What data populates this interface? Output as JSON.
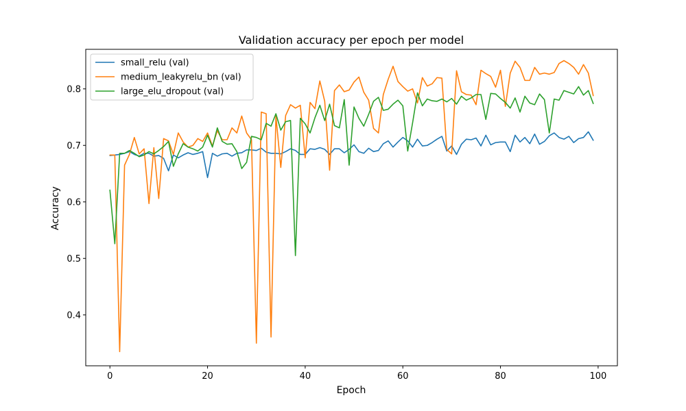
{
  "chart_data": {
    "type": "line",
    "title": "Validation accuracy per epoch per model",
    "xlabel": "Epoch",
    "ylabel": "Accuracy",
    "xlim": [
      -4.95,
      103.95
    ],
    "ylim": [
      0.31,
      0.87
    ],
    "xticks": [
      0,
      20,
      40,
      60,
      80,
      100
    ],
    "yticks": [
      0.4,
      0.5,
      0.6,
      0.7,
      0.8
    ],
    "grid": false,
    "legend_position": "top-left",
    "x": [
      0,
      1,
      2,
      3,
      4,
      5,
      6,
      7,
      8,
      9,
      10,
      11,
      12,
      13,
      14,
      15,
      16,
      17,
      18,
      19,
      20,
      21,
      22,
      23,
      24,
      25,
      26,
      27,
      28,
      29,
      30,
      31,
      32,
      33,
      34,
      35,
      36,
      37,
      38,
      39,
      40,
      41,
      42,
      43,
      44,
      45,
      46,
      47,
      48,
      49,
      50,
      51,
      52,
      53,
      54,
      55,
      56,
      57,
      58,
      59,
      60,
      61,
      62,
      63,
      64,
      65,
      66,
      67,
      68,
      69,
      70,
      71,
      72,
      73,
      74,
      75,
      76,
      77,
      78,
      79,
      80,
      81,
      82,
      83,
      84,
      85,
      86,
      87,
      88,
      89,
      90,
      91,
      92,
      93,
      94,
      95,
      96,
      97,
      98,
      99
    ],
    "series": [
      {
        "name": "small_relu (val)",
        "color": "#1f77b4",
        "values": [
          0.682,
          0.683,
          0.684,
          0.686,
          0.689,
          0.684,
          0.681,
          0.686,
          0.686,
          0.681,
          0.682,
          0.677,
          0.655,
          0.683,
          0.678,
          0.683,
          0.687,
          0.684,
          0.686,
          0.689,
          0.643,
          0.686,
          0.681,
          0.685,
          0.686,
          0.681,
          0.686,
          0.687,
          0.692,
          0.692,
          0.691,
          0.695,
          0.688,
          0.686,
          0.686,
          0.685,
          0.689,
          0.694,
          0.691,
          0.684,
          0.684,
          0.694,
          0.693,
          0.696,
          0.693,
          0.684,
          0.694,
          0.694,
          0.687,
          0.693,
          0.701,
          0.689,
          0.686,
          0.695,
          0.689,
          0.691,
          0.703,
          0.708,
          0.697,
          0.706,
          0.714,
          0.708,
          0.697,
          0.711,
          0.699,
          0.7,
          0.705,
          0.711,
          0.716,
          0.69,
          0.699,
          0.684,
          0.702,
          0.711,
          0.71,
          0.713,
          0.699,
          0.718,
          0.701,
          0.705,
          0.706,
          0.706,
          0.689,
          0.718,
          0.706,
          0.714,
          0.703,
          0.72,
          0.702,
          0.707,
          0.717,
          0.722,
          0.714,
          0.711,
          0.716,
          0.705,
          0.712,
          0.714,
          0.724,
          0.709
        ]
      },
      {
        "name": "medium_leakyrelu_bn (val)",
        "color": "#ff7f0e",
        "values": [
          0.683,
          0.683,
          0.335,
          0.665,
          0.684,
          0.714,
          0.685,
          0.694,
          0.597,
          0.696,
          0.606,
          0.712,
          0.708,
          0.684,
          0.722,
          0.706,
          0.697,
          0.7,
          0.712,
          0.707,
          0.722,
          0.699,
          0.726,
          0.71,
          0.71,
          0.731,
          0.722,
          0.752,
          0.722,
          0.71,
          0.35,
          0.759,
          0.756,
          0.361,
          0.752,
          0.661,
          0.753,
          0.772,
          0.766,
          0.771,
          0.678,
          0.776,
          0.765,
          0.814,
          0.778,
          0.656,
          0.797,
          0.807,
          0.795,
          0.798,
          0.812,
          0.821,
          0.794,
          0.78,
          0.73,
          0.722,
          0.79,
          0.817,
          0.84,
          0.813,
          0.804,
          0.796,
          0.8,
          0.775,
          0.82,
          0.805,
          0.809,
          0.82,
          0.819,
          0.693,
          0.685,
          0.832,
          0.795,
          0.79,
          0.789,
          0.772,
          0.833,
          0.827,
          0.822,
          0.803,
          0.833,
          0.769,
          0.828,
          0.849,
          0.838,
          0.815,
          0.815,
          0.838,
          0.826,
          0.828,
          0.826,
          0.829,
          0.845,
          0.85,
          0.845,
          0.838,
          0.826,
          0.843,
          0.828,
          0.788
        ]
      },
      {
        "name": "large_elu_dropout (val)",
        "color": "#2ca02c",
        "values": [
          0.621,
          0.526,
          0.686,
          0.686,
          0.691,
          0.686,
          0.68,
          0.683,
          0.689,
          0.685,
          0.691,
          0.698,
          0.707,
          0.663,
          0.685,
          0.703,
          0.697,
          0.694,
          0.69,
          0.697,
          0.718,
          0.697,
          0.731,
          0.707,
          0.702,
          0.703,
          0.689,
          0.659,
          0.67,
          0.716,
          0.714,
          0.71,
          0.739,
          0.734,
          0.756,
          0.727,
          0.742,
          0.744,
          0.505,
          0.748,
          0.738,
          0.722,
          0.749,
          0.771,
          0.744,
          0.773,
          0.735,
          0.731,
          0.781,
          0.665,
          0.768,
          0.748,
          0.734,
          0.755,
          0.778,
          0.785,
          0.762,
          0.764,
          0.773,
          0.78,
          0.77,
          0.69,
          0.74,
          0.793,
          0.77,
          0.782,
          0.779,
          0.778,
          0.782,
          0.777,
          0.783,
          0.773,
          0.787,
          0.78,
          0.784,
          0.79,
          0.79,
          0.746,
          0.792,
          0.791,
          0.783,
          0.776,
          0.766,
          0.784,
          0.759,
          0.787,
          0.775,
          0.772,
          0.791,
          0.781,
          0.722,
          0.782,
          0.78,
          0.797,
          0.794,
          0.791,
          0.804,
          0.789,
          0.797,
          0.774
        ]
      }
    ]
  }
}
